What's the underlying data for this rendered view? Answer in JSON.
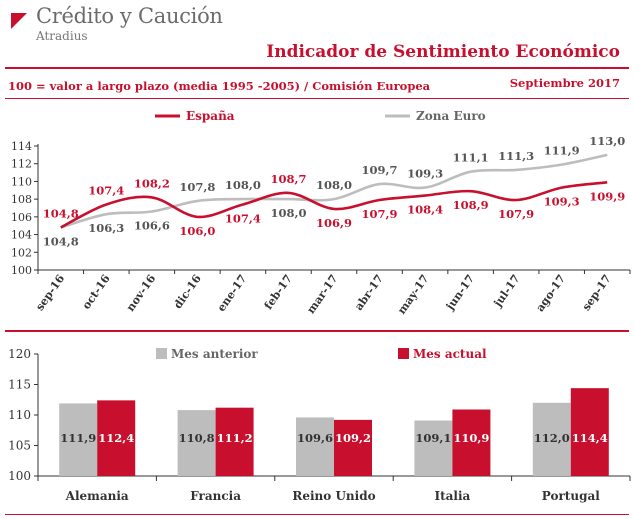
{
  "header": {
    "logo_name": "Crédito y Caución",
    "logo_sub": "Atradius",
    "title": "Indicador de Sentimiento Económico",
    "subtitle": "100 = valor a largo plazo (media 1995 -2005) / Comisión Europea",
    "date": "Septiembre 2017"
  },
  "colors": {
    "espana": "#c8102e",
    "zona_euro": "#bdbdbd",
    "label_gray": "#555555",
    "axis": "#333333"
  },
  "chart_data": [
    {
      "type": "line",
      "categories": [
        "sep-16",
        "oct-16",
        "nov-16",
        "dic-16",
        "ene-17",
        "feb-17",
        "mar-17",
        "abr-17",
        "may-17",
        "jun-17",
        "jul-17",
        "ago-17",
        "sep-17"
      ],
      "series": [
        {
          "name": "España",
          "values": [
            104.8,
            107.4,
            108.2,
            106.0,
            107.4,
            108.7,
            106.9,
            107.9,
            108.4,
            108.9,
            107.9,
            109.3,
            109.9
          ],
          "labels": [
            "104,8",
            "107,4",
            "108,2",
            "106,0",
            "107,4",
            "108,7",
            "106,9",
            "107,9",
            "108,4",
            "108,9",
            "107,9",
            "109,3",
            "109,9"
          ]
        },
        {
          "name": "Zona Euro",
          "values": [
            104.8,
            106.3,
            106.6,
            107.8,
            108.0,
            108.0,
            108.0,
            109.7,
            109.3,
            111.1,
            111.3,
            111.9,
            113.0
          ],
          "labels": [
            "104,8",
            "106,3",
            "106,6",
            "107,8",
            "108,0",
            "108,0",
            "108,0",
            "109,7",
            "109,3",
            "111,1",
            "111,3",
            "111,9",
            "113,0"
          ]
        }
      ],
      "ylim": [
        100,
        114
      ],
      "yticks": [
        "100",
        "102",
        "104",
        "106",
        "108",
        "110",
        "112",
        "114"
      ],
      "legend": "top"
    },
    {
      "type": "bar",
      "categories": [
        "Alemania",
        "Francia",
        "Reino Unido",
        "Italia",
        "Portugal"
      ],
      "series": [
        {
          "name": "Mes anterior",
          "values": [
            111.9,
            110.8,
            109.6,
            109.1,
            112.0
          ],
          "labels": [
            "111,9",
            "110,8",
            "109,6",
            "109,1",
            "112,0"
          ]
        },
        {
          "name": "Mes actual",
          "values": [
            112.4,
            111.2,
            109.2,
            110.9,
            114.4
          ],
          "labels": [
            "112,4",
            "111,2",
            "109,2",
            "110,9",
            "114,4"
          ]
        }
      ],
      "ylim": [
        100,
        120
      ],
      "yticks": [
        "100",
        "105",
        "110",
        "115",
        "120"
      ],
      "legend": "top"
    }
  ]
}
